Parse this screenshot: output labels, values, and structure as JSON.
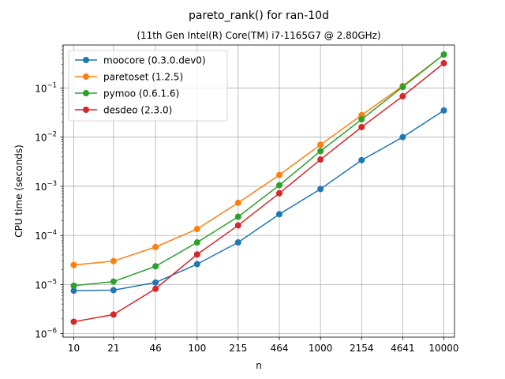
{
  "chart_data": {
    "type": "line",
    "title": "pareto_rank() for ran-10d",
    "subtitle": "(11th Gen Intel(R) Core(TM) i7-1165G7 @ 2.80GHz)",
    "xlabel": "n",
    "ylabel": "CPU time (seconds)",
    "xscale": "log",
    "yscale": "log",
    "x": [
      10,
      21,
      46,
      100,
      215,
      464,
      1000,
      2154,
      4641,
      10000
    ],
    "xticks": [
      "10",
      "21",
      "46",
      "100",
      "215",
      "464",
      "1000",
      "2154",
      "4641",
      "10000"
    ],
    "yticks": [
      {
        "value": 1e-06,
        "base": "10",
        "exp": "−6"
      },
      {
        "value": 1e-05,
        "base": "10",
        "exp": "−5"
      },
      {
        "value": 0.0001,
        "base": "10",
        "exp": "−4"
      },
      {
        "value": 0.001,
        "base": "10",
        "exp": "−3"
      },
      {
        "value": 0.01,
        "base": "10",
        "exp": "−2"
      },
      {
        "value": 0.1,
        "base": "10",
        "exp": "−1"
      }
    ],
    "ylim": [
      8.5e-07,
      0.75
    ],
    "xlim": [
      8.2,
      12200
    ],
    "grid": true,
    "legend_position": "upper-left",
    "series": [
      {
        "name": "moocore (0.3.0.dev0)",
        "color": "#1f77b4",
        "values": [
          7.5e-06,
          7.7e-06,
          1.1e-05,
          2.6e-05,
          7.2e-05,
          0.00027,
          0.00088,
          0.0034,
          0.01,
          0.035
        ]
      },
      {
        "name": "paretoset (1.2.5)",
        "color": "#ff7f0e",
        "values": [
          2.5e-05,
          3e-05,
          5.8e-05,
          0.000135,
          0.00046,
          0.0017,
          0.007,
          0.028,
          0.11,
          0.48
        ]
      },
      {
        "name": "pymoo (0.6.1.6)",
        "color": "#2ca02c",
        "values": [
          9.5e-06,
          1.15e-05,
          2.35e-05,
          7.2e-05,
          0.00024,
          0.00105,
          0.0052,
          0.023,
          0.105,
          0.48
        ]
      },
      {
        "name": "desdeo (2.3.0)",
        "color": "#d62728",
        "values": [
          1.75e-06,
          2.45e-06,
          8.2e-06,
          4.1e-05,
          0.00016,
          0.00072,
          0.0035,
          0.016,
          0.068,
          0.32
        ]
      }
    ]
  }
}
